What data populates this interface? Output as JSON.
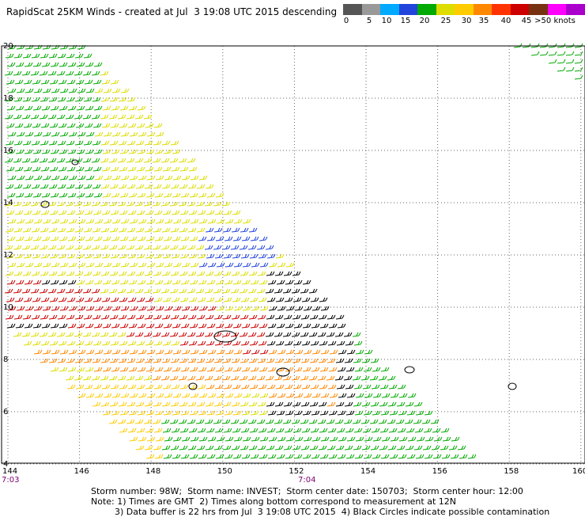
{
  "header": {
    "title": "RapidScat 25KM Winds - created at Jul  3 19:08 UTC 2015 descending"
  },
  "legend": {
    "colors": [
      "#555555",
      "#999999",
      "#00aaff",
      "#2244dd",
      "#00aa00",
      "#dddd00",
      "#ffcc00",
      "#ff8800",
      "#ff3300",
      "#cc0000",
      "#773311",
      "#ff00ff",
      "#aa00cc",
      "#550099"
    ],
    "labels": [
      "0",
      "5",
      "10",
      "15",
      "20",
      "25",
      "30",
      "35",
      "40",
      "45",
      ">50 knots"
    ]
  },
  "map": {
    "lat_labels": [
      "20",
      "18",
      "16",
      "14",
      "12",
      "10",
      "8",
      "6",
      "4"
    ],
    "lon_labels": [
      "144",
      "146",
      "148",
      "150",
      "152",
      "154",
      "156",
      "158",
      "160"
    ],
    "time_labels": [
      "7:03",
      "7:04"
    ]
  },
  "footer": {
    "line1": "Storm number: 98W;  Storm name: INVEST;  Storm center date: 150703;  Storm center hour: 12:00",
    "line2": "Note: 1) Times are GMT  2) Times along bottom correspond to measurement at 12N",
    "line3": "3) Data buffer is 22 hrs from Jul  3 19:08 UTC 2015  4) Black Circles indicate possible contamination"
  }
}
